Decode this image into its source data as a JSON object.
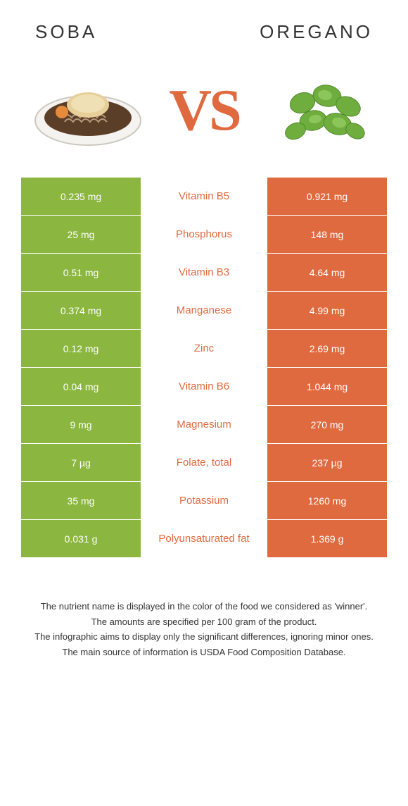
{
  "colors": {
    "soba": "#8bb63f",
    "oregano": "#e06a3f",
    "white": "#ffffff",
    "text": "#333333"
  },
  "header": {
    "left_title": "soba",
    "right_title": "oregano",
    "vs_label": "VS"
  },
  "rows": [
    {
      "left": "0.235 mg",
      "mid": "Vitamin B5",
      "right": "0.921 mg",
      "winner": "right"
    },
    {
      "left": "25 mg",
      "mid": "Phosphorus",
      "right": "148 mg",
      "winner": "right"
    },
    {
      "left": "0.51 mg",
      "mid": "Vitamin B3",
      "right": "4.64 mg",
      "winner": "right"
    },
    {
      "left": "0.374 mg",
      "mid": "Manganese",
      "right": "4.99 mg",
      "winner": "right"
    },
    {
      "left": "0.12 mg",
      "mid": "Zinc",
      "right": "2.69 mg",
      "winner": "right"
    },
    {
      "left": "0.04 mg",
      "mid": "Vitamin B6",
      "right": "1.044 mg",
      "winner": "right"
    },
    {
      "left": "9 mg",
      "mid": "Magnesium",
      "right": "270 mg",
      "winner": "right"
    },
    {
      "left": "7 µg",
      "mid": "Folate, total",
      "right": "237 µg",
      "winner": "right"
    },
    {
      "left": "35 mg",
      "mid": "Potassium",
      "right": "1260 mg",
      "winner": "right"
    },
    {
      "left": "0.031 g",
      "mid": "Polyunsaturated fat",
      "right": "1.369 g",
      "winner": "right"
    }
  ],
  "footnotes": [
    "The nutrient name is displayed in the color of the food we considered as 'winner'.",
    "The amounts are specified per 100 gram of the product.",
    "The infographic aims to display only the significant differences, ignoring minor ones.",
    "The main source of information is USDA Food Composition Database."
  ]
}
